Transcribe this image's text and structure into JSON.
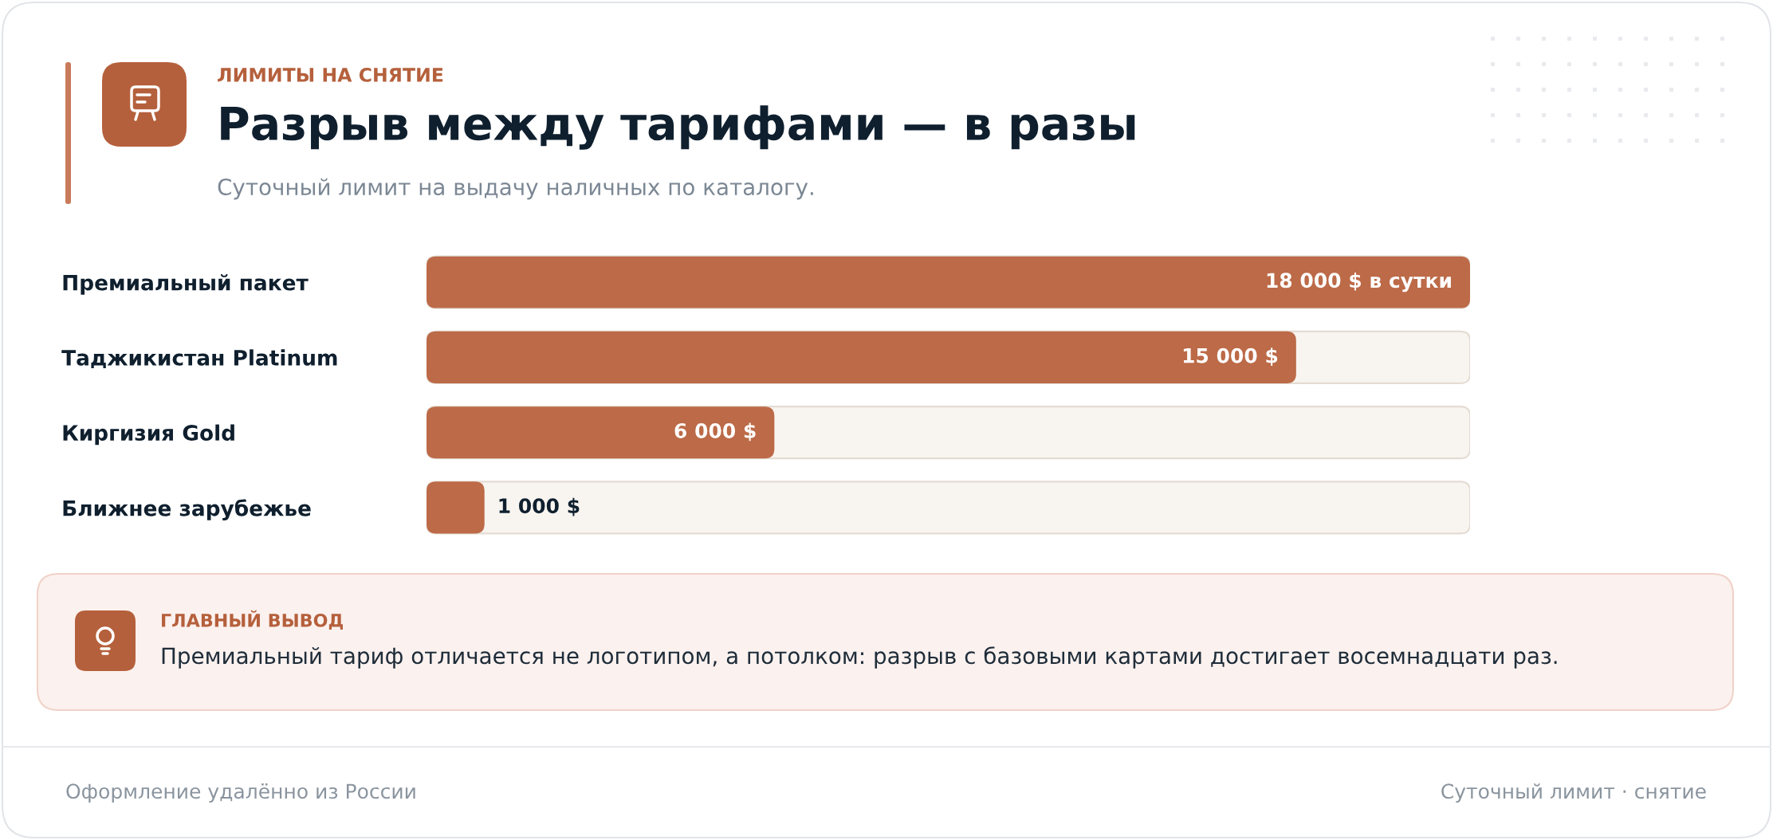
{
  "chart_data": {
    "type": "bar",
    "orientation": "horizontal",
    "title": "Разрыв между тарифами — в разы",
    "subtitle": "Суточный лимит на выдачу наличных по каталогу.",
    "categories": [
      "Премиальный пакет",
      "Таджикистан Platinum",
      "Киргизия Gold",
      "Ближнее зарубежье"
    ],
    "values": [
      18000,
      15000,
      6000,
      1000
    ],
    "value_labels": [
      "18 000 $ в сутки",
      "15 000 $",
      "6 000 $",
      "1 000 $"
    ],
    "color": "#bc6a47",
    "xlim": [
      0,
      18000
    ],
    "tick_labels": "y",
    "annotations": [
      "ЛИМИТЫ НА СНЯТИЕ",
      "ГЛАВНЫЙ ВЫВОД",
      "Премиальный тариф отличается не логотипом, а потолком: разрыв с базовыми картами достигает восемнадцати раз.",
      "Оформление удалённо из России",
      "Суточный лимит · снятие"
    ]
  }
}
